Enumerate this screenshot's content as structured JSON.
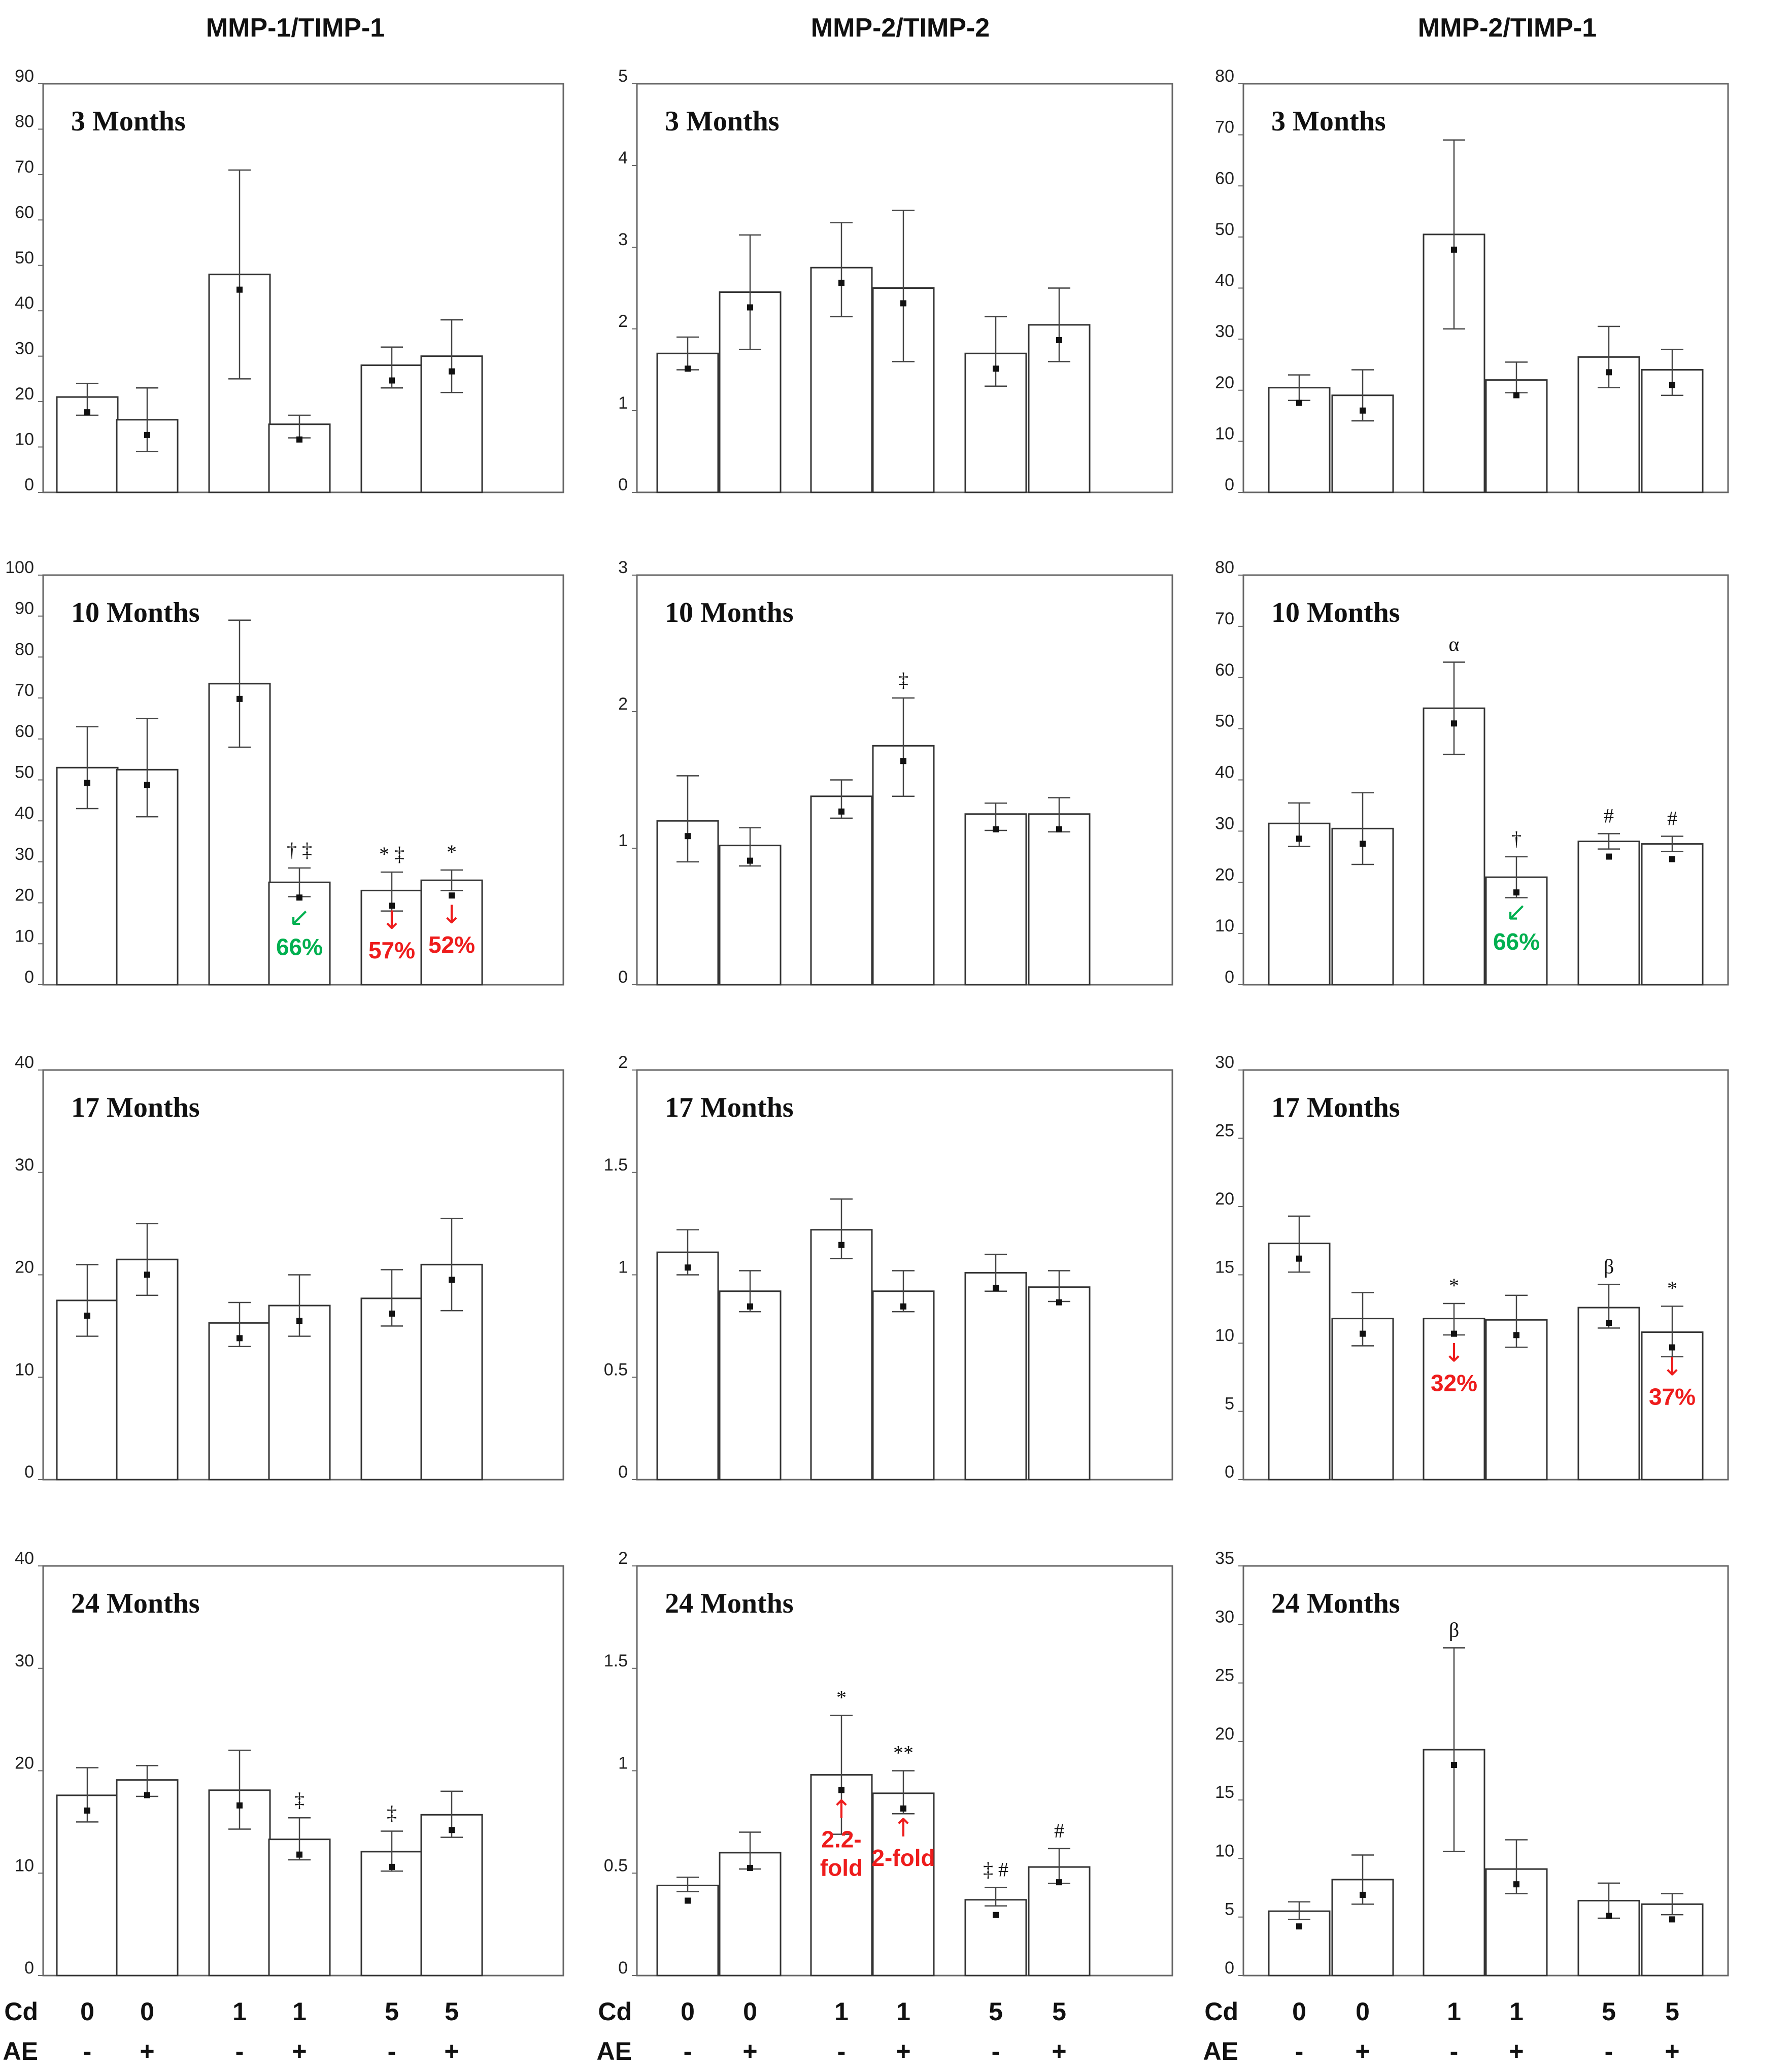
{
  "figure": {
    "column_titles": [
      "MMP-1/TIMP-1",
      "MMP-2/TIMP-2",
      "MMP-2/TIMP-1"
    ],
    "x_axis": {
      "cd_label": "Cd",
      "ae_label": "AE",
      "cd_values": [
        "0",
        "0",
        "1",
        "1",
        "5",
        "5"
      ],
      "ae_values": [
        "-",
        "+",
        "-",
        "+",
        "-",
        "+"
      ]
    },
    "colors": {
      "bar_fill": "#ffffff",
      "bar_stroke": "#333333",
      "red": "#ee1c1c",
      "green": "#00b050"
    }
  },
  "chart_data": [
    {
      "type": "bar",
      "column": 0,
      "row": 0,
      "title": "3 Months",
      "ylim": [
        0,
        90
      ],
      "yticks": [
        "0",
        "10",
        "20",
        "30",
        "40",
        "50",
        "60",
        "70",
        "80",
        "90"
      ],
      "values": [
        21,
        16,
        48,
        15,
        28,
        30
      ],
      "err_lo": [
        17,
        9,
        25,
        12,
        23,
        22
      ],
      "err_hi": [
        24,
        23,
        71,
        17,
        32,
        38
      ],
      "annotations": []
    },
    {
      "type": "bar",
      "column": 1,
      "row": 0,
      "title": "3 Months",
      "ylim": [
        0,
        5
      ],
      "yticks": [
        "0",
        "1",
        "2",
        "3",
        "4",
        "5"
      ],
      "values": [
        1.7,
        2.45,
        2.75,
        2.5,
        1.7,
        2.05
      ],
      "err_lo": [
        1.5,
        1.75,
        2.15,
        1.6,
        1.3,
        1.6
      ],
      "err_hi": [
        1.9,
        3.15,
        3.3,
        3.45,
        2.15,
        2.5
      ],
      "annotations": []
    },
    {
      "type": "bar",
      "column": 2,
      "row": 0,
      "title": "3 Months",
      "ylim": [
        0,
        80
      ],
      "yticks": [
        "0",
        "10",
        "20",
        "30",
        "40",
        "50",
        "60",
        "70",
        "80"
      ],
      "values": [
        20.5,
        19,
        50.5,
        22,
        26.5,
        24
      ],
      "err_lo": [
        18,
        14,
        32,
        19.5,
        20.5,
        19
      ],
      "err_hi": [
        23,
        24,
        69,
        25.5,
        32.5,
        28
      ],
      "annotations": []
    },
    {
      "type": "bar",
      "column": 0,
      "row": 1,
      "title": "10 Months",
      "ylim": [
        0,
        100
      ],
      "yticks": [
        "0",
        "10",
        "20",
        "30",
        "40",
        "50",
        "60",
        "70",
        "80",
        "90",
        "100"
      ],
      "values": [
        53,
        52.5,
        73.5,
        25,
        23,
        25.5
      ],
      "err_lo": [
        43,
        41,
        58,
        21.5,
        18,
        23
      ],
      "err_hi": [
        63,
        65,
        89,
        28.5,
        27.5,
        28
      ],
      "annotations": [
        {
          "bar": 3,
          "text": "† ‡",
          "color": "#111111"
        },
        {
          "bar": 4,
          "text": "* ‡",
          "color": "#111111"
        },
        {
          "bar": 5,
          "text": "*",
          "color": "#111111"
        }
      ],
      "change_labels": [
        {
          "bar": 3,
          "arrow": "↙",
          "text": "66%",
          "color": "#00b050"
        },
        {
          "bar": 4,
          "arrow": "↓",
          "text": "57%",
          "color": "#ee1c1c"
        },
        {
          "bar": 5,
          "arrow": "↓",
          "text": "52%",
          "color": "#ee1c1c"
        }
      ]
    },
    {
      "type": "bar",
      "column": 1,
      "row": 1,
      "title": "10 Months",
      "ylim": [
        0,
        3
      ],
      "yticks": [
        "0",
        "1",
        "2",
        "3"
      ],
      "values": [
        1.2,
        1.02,
        1.38,
        1.75,
        1.25,
        1.25
      ],
      "err_lo": [
        0.9,
        0.87,
        1.22,
        1.38,
        1.13,
        1.12
      ],
      "err_hi": [
        1.53,
        1.15,
        1.5,
        2.1,
        1.33,
        1.37
      ],
      "annotations": [
        {
          "bar": 3,
          "text": "‡",
          "color": "#111111"
        }
      ]
    },
    {
      "type": "bar",
      "column": 2,
      "row": 1,
      "title": "10 Months",
      "ylim": [
        0,
        80
      ],
      "yticks": [
        "0",
        "10",
        "20",
        "30",
        "40",
        "50",
        "60",
        "70",
        "80"
      ],
      "values": [
        31.5,
        30.5,
        54,
        21,
        28,
        27.5
      ],
      "err_lo": [
        27,
        23.5,
        45,
        17,
        26.5,
        26
      ],
      "err_hi": [
        35.5,
        37.5,
        63,
        25,
        29.5,
        29
      ],
      "annotations": [
        {
          "bar": 2,
          "text": "α",
          "color": "#111111"
        },
        {
          "bar": 3,
          "text": "†",
          "color": "#111111"
        },
        {
          "bar": 4,
          "text": "#",
          "color": "#111111"
        },
        {
          "bar": 5,
          "text": "#",
          "color": "#111111"
        }
      ],
      "change_labels": [
        {
          "bar": 3,
          "arrow": "↙",
          "text": "66%",
          "color": "#00b050"
        }
      ]
    },
    {
      "type": "bar",
      "column": 0,
      "row": 2,
      "title": "17 Months",
      "ylim": [
        0,
        40
      ],
      "yticks": [
        "0",
        "10",
        "20",
        "30",
        "40"
      ],
      "values": [
        17.5,
        21.5,
        15.3,
        17,
        17.7,
        21
      ],
      "err_lo": [
        14,
        18,
        13,
        14,
        15,
        16.5
      ],
      "err_hi": [
        21,
        25,
        17.3,
        20,
        20.5,
        25.5
      ],
      "annotations": []
    },
    {
      "type": "bar",
      "column": 1,
      "row": 2,
      "title": "17 Months",
      "ylim": [
        0,
        2
      ],
      "yticks": [
        "0",
        "0.5",
        "1",
        "1.5",
        "2"
      ],
      "values": [
        1.11,
        0.92,
        1.22,
        0.92,
        1.01,
        0.94
      ],
      "err_lo": [
        1.0,
        0.82,
        1.08,
        0.82,
        0.92,
        0.87
      ],
      "err_hi": [
        1.22,
        1.02,
        1.37,
        1.02,
        1.1,
        1.02
      ],
      "annotations": []
    },
    {
      "type": "bar",
      "column": 2,
      "row": 2,
      "title": "17 Months",
      "ylim": [
        0,
        30
      ],
      "yticks": [
        "0",
        "5",
        "10",
        "15",
        "20",
        "25",
        "30"
      ],
      "values": [
        17.3,
        11.8,
        11.8,
        11.7,
        12.6,
        10.8
      ],
      "err_lo": [
        15.2,
        9.8,
        10.6,
        9.7,
        11.1,
        9.0
      ],
      "err_hi": [
        19.3,
        13.7,
        12.9,
        13.5,
        14.3,
        12.7
      ],
      "annotations": [
        {
          "bar": 2,
          "text": "*",
          "color": "#111111"
        },
        {
          "bar": 4,
          "text": "β",
          "color": "#111111"
        },
        {
          "bar": 5,
          "text": "*",
          "color": "#111111"
        }
      ],
      "change_labels": [
        {
          "bar": 2,
          "arrow": "↓",
          "text": "32%",
          "color": "#ee1c1c"
        },
        {
          "bar": 5,
          "arrow": "↓",
          "text": "37%",
          "color": "#ee1c1c"
        }
      ]
    },
    {
      "type": "bar",
      "column": 0,
      "row": 3,
      "title": "24 Months",
      "ylim": [
        0,
        40
      ],
      "yticks": [
        "0",
        "10",
        "20",
        "30",
        "40"
      ],
      "values": [
        17.6,
        19.1,
        18.1,
        13.3,
        12.1,
        15.7
      ],
      "err_lo": [
        15,
        17.5,
        14.3,
        11.3,
        10.2,
        13.5
      ],
      "err_hi": [
        20.3,
        20.5,
        22,
        15.4,
        14.1,
        18
      ],
      "annotations": [
        {
          "bar": 3,
          "text": "‡",
          "color": "#111111"
        },
        {
          "bar": 4,
          "text": "‡",
          "color": "#111111"
        }
      ]
    },
    {
      "type": "bar",
      "column": 1,
      "row": 3,
      "title": "24 Months",
      "ylim": [
        0,
        2
      ],
      "yticks": [
        "0",
        "0.5",
        "1",
        "1.5",
        "2"
      ],
      "values": [
        0.44,
        0.6,
        0.98,
        0.89,
        0.37,
        0.53
      ],
      "err_lo": [
        0.41,
        0.52,
        0.69,
        0.79,
        0.34,
        0.45
      ],
      "err_hi": [
        0.48,
        0.7,
        1.27,
        1.0,
        0.43,
        0.62
      ],
      "annotations": [
        {
          "bar": 2,
          "text": "*",
          "color": "#111111"
        },
        {
          "bar": 3,
          "text": "**",
          "color": "#111111"
        },
        {
          "bar": 4,
          "text": "‡ #",
          "color": "#111111"
        },
        {
          "bar": 5,
          "text": "#",
          "color": "#111111"
        }
      ],
      "change_labels": [
        {
          "bar": 2,
          "arrow": "↑",
          "text": "2.2-",
          "text2": "fold",
          "color": "#ee1c1c"
        },
        {
          "bar": 3,
          "arrow": "↑",
          "text": "2-fold",
          "color": "#ee1c1c"
        }
      ]
    },
    {
      "type": "bar",
      "column": 2,
      "row": 3,
      "title": "24 Months",
      "ylim": [
        0,
        35
      ],
      "yticks": [
        "0",
        "5",
        "10",
        "15",
        "20",
        "25",
        "30",
        "35"
      ],
      "values": [
        5.5,
        8.2,
        19.3,
        9.1,
        6.4,
        6.1
      ],
      "err_lo": [
        4.8,
        6.1,
        10.6,
        7.0,
        4.9,
        5.2
      ],
      "err_hi": [
        6.3,
        10.3,
        28,
        11.6,
        7.9,
        7.0
      ],
      "annotations": [
        {
          "bar": 2,
          "text": "β",
          "color": "#111111"
        }
      ]
    }
  ]
}
